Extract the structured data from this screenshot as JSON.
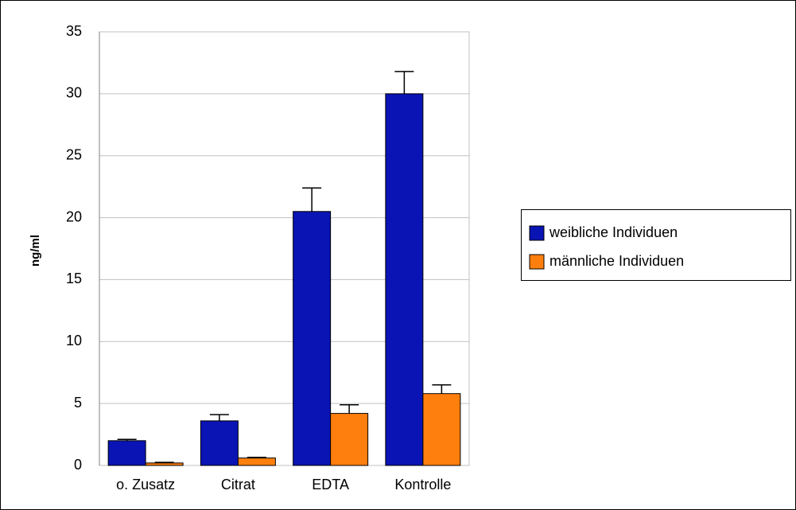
{
  "chart_data": {
    "type": "bar",
    "y_label": "ng/ml",
    "categories": [
      "o. Zusatz",
      "Citrat",
      "EDTA",
      "Kontrolle"
    ],
    "series": [
      {
        "name": "weibliche Individuen",
        "color": "#0a14b4",
        "values": [
          2.0,
          3.6,
          20.5,
          30.0
        ],
        "errors": [
          0.1,
          0.5,
          1.9,
          1.8
        ]
      },
      {
        "name": "männliche Individuen",
        "color": "#ff7f0e",
        "values": [
          0.2,
          0.6,
          4.2,
          5.8
        ],
        "errors": [
          0.05,
          0.05,
          0.7,
          0.7
        ]
      }
    ],
    "ylim": [
      0,
      35
    ],
    "yticks": [
      0,
      5,
      10,
      15,
      20,
      25,
      30,
      35
    ],
    "grid": true,
    "legend": "right"
  }
}
